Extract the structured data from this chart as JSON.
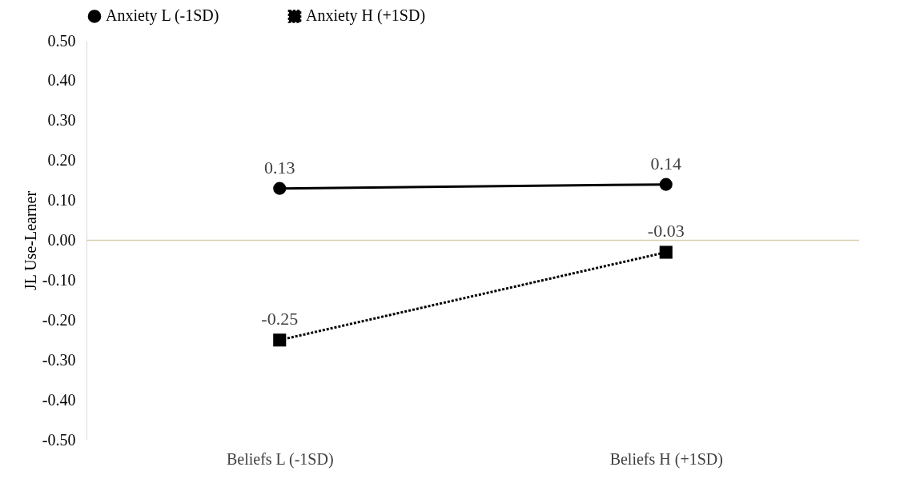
{
  "chart_data": {
    "type": "line",
    "ylabel": "JL Use-Learner",
    "categories": [
      "Beliefs L (-1SD)",
      "Beliefs H (+1SD)"
    ],
    "series": [
      {
        "name": "Anxiety L (-1SD)",
        "color": "#000000",
        "values": [
          0.13,
          0.14
        ],
        "marker": "circle",
        "line_style": "solid"
      },
      {
        "name": "Anxiety H (+1SD)",
        "color": "#000000",
        "values": [
          -0.25,
          -0.03
        ],
        "marker": "square",
        "line_style": "dotted"
      }
    ],
    "ylim": [
      -0.5,
      0.5
    ],
    "yticks": [
      {
        "value": -0.5,
        "label": "-0.50"
      },
      {
        "value": -0.4,
        "label": "-0.40"
      },
      {
        "value": -0.3,
        "label": "-0.30"
      },
      {
        "value": -0.2,
        "label": "-0.20"
      },
      {
        "value": -0.1,
        "label": "-0.10"
      },
      {
        "value": 0,
        "label": "0.00"
      },
      {
        "value": 0.1,
        "label": "0.10"
      },
      {
        "value": 0.2,
        "label": "0.20"
      },
      {
        "value": 0.3,
        "label": "0.30"
      },
      {
        "value": 0.4,
        "label": "0.40"
      },
      {
        "value": 0.5,
        "label": "0.50"
      }
    ],
    "ref_lines": [
      {
        "axis": "y",
        "value": 0,
        "color": "#d6cfae"
      }
    ],
    "legend": "top",
    "data_labels": true
  }
}
